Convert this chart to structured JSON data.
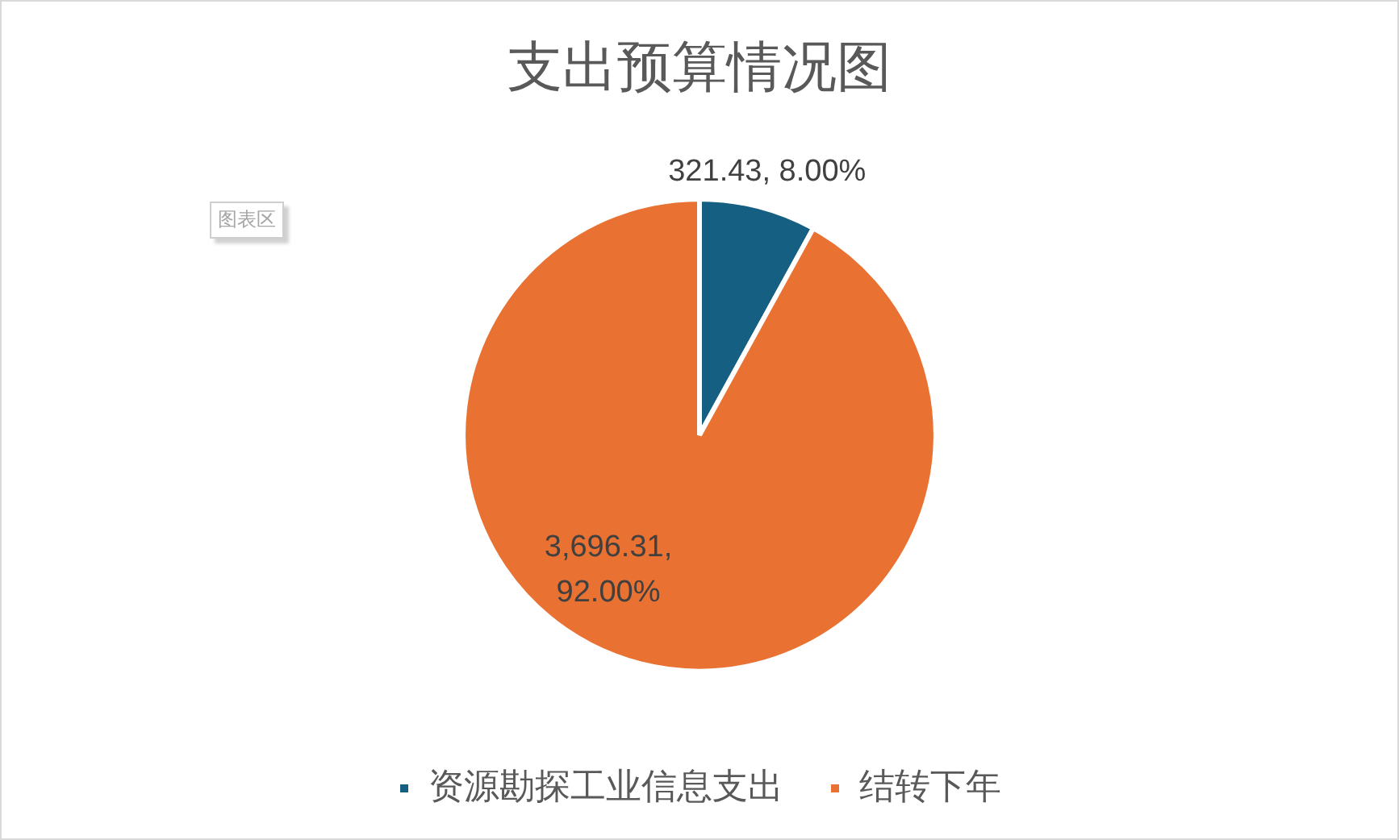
{
  "chart_data": {
    "type": "pie",
    "title": "支出预算情况图",
    "categories": [
      "资源勘探工业信息支出",
      "结转下年"
    ],
    "values": [
      321.43,
      3696.31
    ],
    "colors": [
      "#156082",
      "#e97132"
    ],
    "value_labels": [
      "321.43, 8.00%",
      "3,696.31, 92.00%"
    ],
    "legend": "bottom",
    "annotations": [
      "图表区"
    ]
  }
}
